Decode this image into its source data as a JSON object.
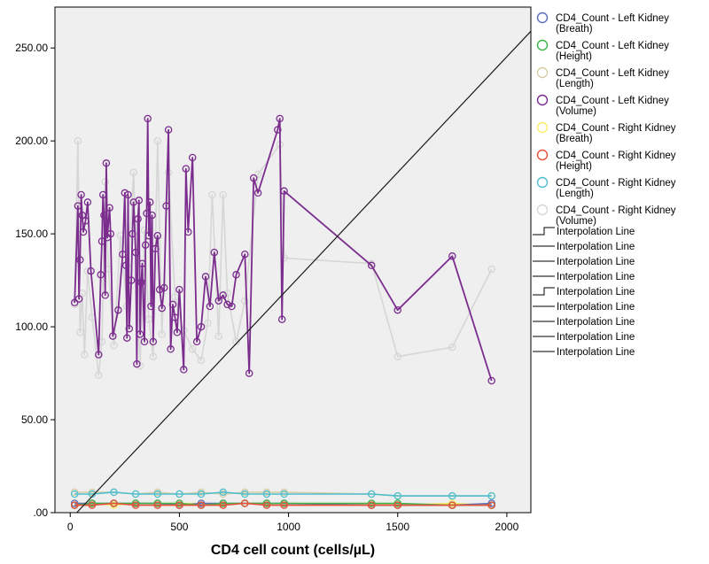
{
  "chart_data": {
    "type": "line",
    "title": "",
    "xlabel": "CD4 cell count (cells/µL)",
    "ylabel": "",
    "xlim": [
      -70,
      2110
    ],
    "ylim": [
      0,
      272
    ],
    "x_ticks": [
      0,
      500,
      1000,
      1500,
      2000
    ],
    "x_tick_labels": [
      "0",
      "500",
      "1000",
      "1500",
      "2000"
    ],
    "y_ticks": [
      0,
      50,
      100,
      150,
      200,
      250
    ],
    "y_tick_labels": [
      ".00",
      "50.00",
      "100.00",
      "150.00",
      "200.00",
      "250.00"
    ],
    "grid": false,
    "background": "#efefef",
    "legend_placement": "right",
    "reference_line": {
      "from": [
        30,
        0
      ],
      "to": [
        2110,
        259
      ]
    },
    "series": [
      {
        "name": "CD4_Count - Left Kidney\n(Breath)",
        "color": "#5b6bc0",
        "x": [
          20,
          100,
          200,
          300,
          400,
          500,
          600,
          700,
          800,
          900,
          980,
          1380,
          1500,
          1750,
          1930
        ],
        "y": [
          5,
          5,
          5,
          5,
          5,
          4,
          5,
          5,
          5,
          5,
          5,
          4,
          4,
          4,
          5
        ]
      },
      {
        "name": "CD4_Count - Left Kidney\n(Height)",
        "color": "#3cb44b",
        "x": [
          20,
          100,
          200,
          300,
          400,
          500,
          600,
          700,
          800,
          900,
          980,
          1380,
          1500,
          1750,
          1930
        ],
        "y": [
          4,
          5,
          5,
          5,
          5,
          5,
          4,
          5,
          5,
          5,
          5,
          5,
          5,
          4,
          4
        ]
      },
      {
        "name": "CD4_Count - Left Kidney\n(Length)",
        "color": "#d8cfa8",
        "x": [
          20,
          100,
          200,
          300,
          400,
          500,
          600,
          700,
          800,
          900,
          980,
          1380,
          1500,
          1750,
          1930
        ],
        "y": [
          11,
          11,
          11,
          10,
          11,
          10,
          11,
          10,
          11,
          11,
          11,
          10,
          9,
          9,
          9
        ]
      },
      {
        "name": "CD4_Count - Left Kidney\n(Volume)",
        "color": "#7b2d8e",
        "x": [
          20,
          35,
          40,
          45,
          50,
          55,
          60,
          70,
          80,
          95,
          130,
          140,
          145,
          150,
          155,
          160,
          165,
          170,
          180,
          185,
          195,
          220,
          240,
          250,
          255,
          260,
          265,
          270,
          280,
          285,
          290,
          300,
          305,
          310,
          315,
          320,
          325,
          330,
          340,
          345,
          350,
          355,
          360,
          365,
          370,
          375,
          380,
          390,
          400,
          410,
          420,
          430,
          440,
          450,
          460,
          470,
          480,
          490,
          500,
          520,
          530,
          540,
          560,
          580,
          600,
          620,
          640,
          660,
          680,
          700,
          720,
          740,
          760,
          800,
          820,
          840,
          860,
          950,
          960,
          970,
          980,
          1380,
          1500,
          1750,
          1930
        ],
        "y": [
          113,
          165,
          115,
          136,
          171,
          160,
          151,
          157,
          167,
          130,
          85,
          128,
          146,
          171,
          160,
          117,
          188,
          148,
          164,
          150,
          95,
          109,
          139,
          172,
          133,
          94,
          171,
          99,
          125,
          150,
          167,
          140,
          80,
          158,
          168,
          96,
          124,
          134,
          92,
          144,
          161,
          212,
          149,
          167,
          111,
          160,
          92,
          142,
          149,
          120,
          110,
          121,
          165,
          206,
          88,
          112,
          105,
          97,
          120,
          77,
          185,
          151,
          191,
          92,
          100,
          127,
          111,
          140,
          114,
          117,
          112,
          111,
          128,
          139,
          75,
          180,
          172,
          206,
          212,
          104,
          173,
          133,
          109,
          138,
          71
        ]
      },
      {
        "name": "CD4_Count - Right Kidney\n(Breath)",
        "color": "#f5ef6a",
        "x": [
          20,
          100,
          200,
          300,
          400,
          500,
          600,
          700,
          800,
          900,
          980,
          1380,
          1500,
          1750,
          1930
        ],
        "y": [
          5,
          5,
          4,
          5,
          5,
          5,
          5,
          4,
          5,
          5,
          5,
          5,
          4,
          5,
          4
        ]
      },
      {
        "name": "CD4_Count - Right Kidney\n(Height)",
        "color": "#e8503a",
        "x": [
          20,
          100,
          200,
          300,
          400,
          500,
          600,
          700,
          800,
          900,
          980,
          1380,
          1500,
          1750,
          1930
        ],
        "y": [
          4,
          4,
          5,
          4,
          4,
          4,
          4,
          4,
          5,
          4,
          4,
          4,
          4,
          4,
          4
        ]
      },
      {
        "name": "CD4_Count - Right Kidney\n(Length)",
        "color": "#4fbfcf",
        "x": [
          20,
          100,
          200,
          300,
          400,
          500,
          600,
          700,
          800,
          900,
          980,
          1380,
          1500,
          1750,
          1930
        ],
        "y": [
          10,
          10,
          11,
          10,
          10,
          10,
          10,
          11,
          10,
          10,
          10,
          10,
          9,
          9,
          9
        ]
      },
      {
        "name": "CD4_Count - Right Kidney\n(Volume)",
        "color": "#d6d6d6",
        "x": [
          20,
          35,
          45,
          55,
          65,
          80,
          100,
          130,
          145,
          160,
          175,
          200,
          230,
          260,
          290,
          320,
          340,
          360,
          380,
          400,
          420,
          450,
          480,
          520,
          560,
          600,
          630,
          650,
          680,
          700,
          720,
          760,
          800,
          860,
          960,
          980,
          1380,
          1500,
          1750,
          1930
        ],
        "y": [
          112,
          200,
          97,
          118,
          85,
          130,
          105,
          74,
          92,
          178,
          131,
          90,
          149,
          111,
          183,
          79,
          152,
          104,
          84,
          200,
          96,
          183,
          116,
          98,
          88,
          82,
          102,
          171,
          95,
          171,
          118,
          92,
          114,
          182,
          198,
          137,
          134,
          84,
          89,
          131
        ]
      }
    ],
    "legend_lines": [
      "Interpolation Line",
      "Interpolation Line",
      "Interpolation Line",
      "Interpolation Line",
      "Interpolation Line",
      "Interpolation Line",
      "Interpolation Line",
      "Interpolation Line",
      "Interpolation Line"
    ]
  }
}
